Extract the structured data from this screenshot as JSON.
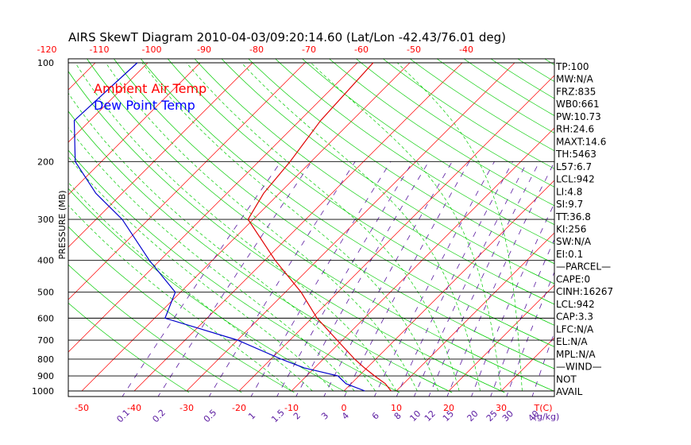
{
  "chart_data": {
    "type": "skewt",
    "title": "AIRS SkewT Diagram 2010-04-03/09:20:14.60 (Lat/Lon -42.43/76.01 deg)",
    "ylabel": "PRESSURE (MB)",
    "xlabel_unit": "T(C)",
    "mixing_ratio_unit": "(g/kg)",
    "pressure_ticks": [
      100,
      200,
      300,
      400,
      500,
      600,
      700,
      800,
      900,
      1000
    ],
    "bottom_temp_ticks": [
      "-50",
      "-40",
      "-30",
      "-20",
      "-10",
      "0",
      "10",
      "20",
      "30"
    ],
    "top_temp_ticks": [
      "-120",
      "-110",
      "-100",
      "-90",
      "-80",
      "-70",
      "-60",
      "-50",
      "-40"
    ],
    "mixing_ratio_labels": [
      "0.1",
      "0.2",
      "0.5",
      "1",
      "1.5",
      "2",
      "3",
      "4",
      "6",
      "8",
      "10",
      "12",
      "15",
      "20",
      "25",
      "30",
      "40"
    ],
    "legend": [
      {
        "name": "Ambient Air Temp",
        "color": "#ff0000"
      },
      {
        "name": "Dew Point Temp",
        "color": "#0000ff"
      }
    ],
    "series": [
      {
        "name": "Ambient Air Temp",
        "color": "#e00000",
        "points": [
          {
            "p": 1000,
            "t": 9
          },
          {
            "p": 950,
            "t": 6.5
          },
          {
            "p": 900,
            "t": 3
          },
          {
            "p": 850,
            "t": -0.5
          },
          {
            "p": 800,
            "t": -4
          },
          {
            "p": 700,
            "t": -11
          },
          {
            "p": 600,
            "t": -19
          },
          {
            "p": 500,
            "t": -27
          },
          {
            "p": 400,
            "t": -38
          },
          {
            "p": 300,
            "t": -51
          },
          {
            "p": 250,
            "t": -53
          },
          {
            "p": 200,
            "t": -54
          },
          {
            "p": 150,
            "t": -56
          },
          {
            "p": 100,
            "t": -57
          }
        ]
      },
      {
        "name": "Dew Point Temp",
        "color": "#0000cc",
        "points": [
          {
            "p": 1000,
            "t": 4
          },
          {
            "p": 950,
            "t": -1
          },
          {
            "p": 900,
            "t": -4
          },
          {
            "p": 850,
            "t": -12
          },
          {
            "p": 800,
            "t": -18
          },
          {
            "p": 700,
            "t": -30
          },
          {
            "p": 600,
            "t": -48
          },
          {
            "p": 500,
            "t": -51
          },
          {
            "p": 400,
            "t": -62
          },
          {
            "p": 300,
            "t": -75
          },
          {
            "p": 250,
            "t": -85
          },
          {
            "p": 200,
            "t": -95
          },
          {
            "p": 150,
            "t": -103
          },
          {
            "p": 100,
            "t": -102
          }
        ]
      }
    ],
    "indices": [
      "TP:100",
      "MW:N/A",
      "FRZ:835",
      "WB0:661",
      "PW:10.73",
      "RH:24.6",
      "MAXT:14.6",
      "TH:5463",
      "L57:6.7",
      "LCL:942",
      "LI:4.8",
      "SI:9.7",
      "TT:36.8",
      "KI:256",
      "SW:N/A",
      "EI:0.1",
      "—PARCEL—",
      "CAPE:0",
      "CINH:16267",
      "LCL:942",
      "CAP:3.3",
      "LFC:N/A",
      "EL:N/A",
      "MPL:N/A",
      "—WIND—",
      "NOT",
      "AVAIL"
    ],
    "colors": {
      "isotherm": "#ff0000",
      "dry_adiabat": "#00cc00",
      "moist_adiabat": "#00cc00",
      "mixing_ratio": "#5a1aa0",
      "temp_axis_labels": "#ff0000",
      "mixing_ratio_labels": "#5a1aa0"
    }
  }
}
